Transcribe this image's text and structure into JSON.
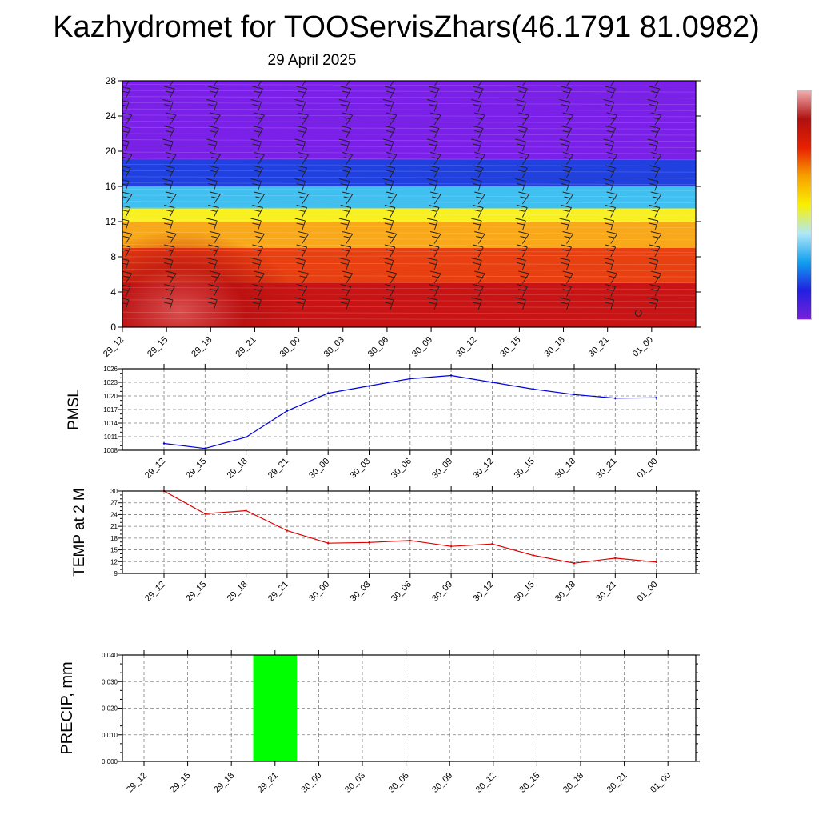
{
  "title": "Kazhydromet for TOOServisZhars(46.1791 81.0982)",
  "date": "29 April 2025",
  "colors": {
    "pmsl_line": "#0000dd",
    "temp_line": "#dd0000",
    "precip_bar": "#00ff00",
    "grid": "#808080"
  },
  "colorbar": {
    "palette": [
      "#7a1fd9",
      "#2020e0",
      "#10a0f0",
      "#b0e8f8",
      "#f8f000",
      "#f8a000",
      "#e82000",
      "#b01010",
      "#f0b0b0"
    ]
  },
  "chart_data": [
    {
      "type": "heatmap",
      "title": "",
      "xlabel": "",
      "ylabel": "",
      "x": [
        "29_12",
        "29_15",
        "29_18",
        "29_21",
        "30_00",
        "30_03",
        "30_06",
        "30_09",
        "30_12",
        "30_15",
        "30_18",
        "30_21",
        "01_00"
      ],
      "y_ticks": [
        0,
        4,
        8,
        12,
        16,
        20,
        24,
        28
      ],
      "ylim": [
        0,
        28
      ],
      "overlay": "wind barbs",
      "color_bands": [
        {
          "from": 0,
          "to": 5,
          "color": "#c81414"
        },
        {
          "from": 5,
          "to": 9,
          "color": "#e84010"
        },
        {
          "from": 9,
          "to": 12,
          "color": "#f8a818"
        },
        {
          "from": 12,
          "to": 13.5,
          "color": "#f8f020"
        },
        {
          "from": 13.5,
          "to": 16,
          "color": "#40c0f0"
        },
        {
          "from": 16,
          "to": 19,
          "color": "#2040e0"
        },
        {
          "from": 19,
          "to": 28,
          "color": "#7a20e8"
        }
      ]
    },
    {
      "type": "line",
      "ylabel": "PMSL",
      "categories": [
        "29_12",
        "29_15",
        "29_18",
        "29_21",
        "30_00",
        "30_03",
        "30_06",
        "30_09",
        "30_12",
        "30_15",
        "30_18",
        "30_21",
        "01_00"
      ],
      "ticks": [
        1008,
        1011,
        1014,
        1017,
        1020,
        1023,
        1026
      ],
      "ylim": [
        1008,
        1026
      ],
      "grid": true,
      "series": [
        {
          "values": [
            1009.5,
            1008.4,
            1010.9,
            1016.7,
            1020.6,
            1022.2,
            1023.8,
            1024.5,
            1023.0,
            1021.5,
            1020.3,
            1019.5,
            1019.6
          ]
        }
      ]
    },
    {
      "type": "line",
      "ylabel": "TEMP at 2 M",
      "categories": [
        "29_12",
        "29_15",
        "29_18",
        "29_21",
        "30_00",
        "30_03",
        "30_06",
        "30_09",
        "30_12",
        "30_15",
        "30_18",
        "30_21",
        "01_00"
      ],
      "ticks": [
        9,
        12,
        15,
        18,
        21,
        24,
        27,
        30
      ],
      "ylim": [
        9,
        30
      ],
      "grid": true,
      "series": [
        {
          "values": [
            30.0,
            24.2,
            25.0,
            19.9,
            16.7,
            16.9,
            17.4,
            15.9,
            16.5,
            13.6,
            11.6,
            12.9,
            11.9
          ]
        }
      ]
    },
    {
      "type": "bar",
      "ylabel": "PRECIP, mm",
      "categories": [
        "29_12",
        "29_15",
        "29_18",
        "29_21",
        "30_00",
        "30_03",
        "30_06",
        "30_09",
        "30_12",
        "30_15",
        "30_18",
        "30_21",
        "01_00"
      ],
      "ticks": [
        "0.000",
        "0.010",
        "0.020",
        "0.030",
        "0.040"
      ],
      "ylim": [
        0,
        0.04
      ],
      "grid": true,
      "series": [
        {
          "values": [
            0,
            0,
            0,
            0.04,
            0,
            0,
            0,
            0,
            0,
            0,
            0,
            0,
            0
          ]
        }
      ]
    }
  ]
}
